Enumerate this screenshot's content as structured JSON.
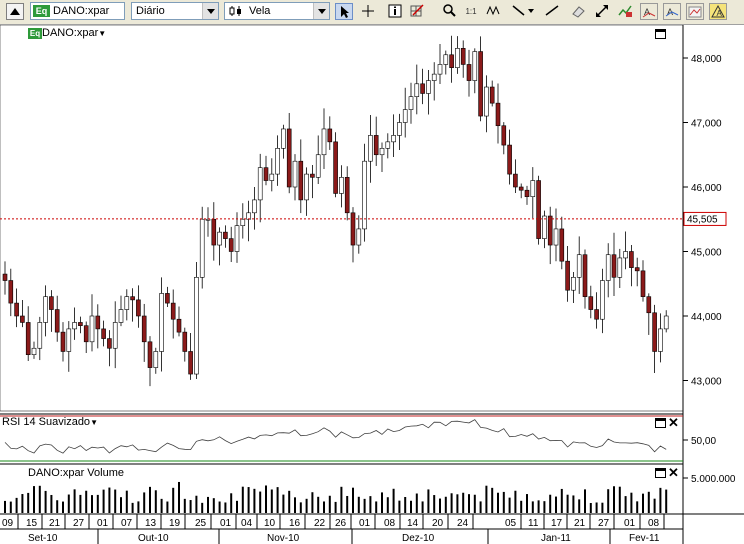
{
  "toolbar": {
    "symbol": "DANO:xpar",
    "eq_badge": "Eq",
    "period": "Diário",
    "chart_style": "Vela",
    "ratio_label": "1:1"
  },
  "price_pane": {
    "title": "DANO:xpar",
    "current_price": "45,505",
    "y_ticks": [
      "48,000",
      "47,000",
      "46,000",
      "45,000",
      "44,000",
      "43,000"
    ]
  },
  "rsi_pane": {
    "title": "RSI 14 Suavizado",
    "y_tick": "50,00"
  },
  "volume_pane": {
    "title": "DANO:xpar Volume",
    "y_tick": "5.000.000"
  },
  "dates": [
    "09",
    "15",
    "21",
    "27",
    "01",
    "07",
    "13",
    "19",
    "25",
    "01",
    "04",
    "10",
    "16",
    "22",
    "26",
    "01",
    "08",
    "14",
    "20",
    "24",
    "05",
    "11",
    "17",
    "21",
    "27",
    "01",
    "08"
  ],
  "months": [
    "Set-10",
    "Out-10",
    "Nov-10",
    "Dez-10",
    "Jan-11",
    "Fev-11"
  ],
  "colors": {
    "bear": "#8b1a1a",
    "bull": "#ffffff",
    "price_line": "#cc0000",
    "rsi_line": "#404040"
  },
  "chart_data": {
    "type": "candlestick",
    "y_range": [
      42.5,
      48.5
    ],
    "current": 45.505,
    "closes": [
      44.55,
      44.2,
      44.0,
      43.9,
      43.4,
      43.5,
      43.9,
      44.3,
      44.1,
      43.75,
      43.45,
      43.8,
      43.9,
      43.85,
      43.6,
      44.0,
      43.8,
      43.65,
      43.5,
      43.9,
      44.1,
      44.3,
      44.25,
      44.0,
      43.6,
      43.2,
      43.45,
      44.35,
      44.2,
      43.95,
      43.75,
      43.45,
      43.1,
      44.6,
      45.5,
      45.5,
      45.1,
      45.3,
      45.2,
      45.0,
      45.4,
      45.5,
      45.6,
      45.8,
      46.3,
      46.1,
      46.2,
      46.6,
      46.9,
      46.0,
      46.4,
      45.8,
      46.2,
      46.15,
      46.5,
      46.9,
      46.7,
      45.9,
      46.15,
      45.6,
      45.1,
      45.35,
      46.4,
      46.8,
      46.5,
      46.6,
      46.7,
      46.8,
      47.0,
      47.2,
      47.4,
      47.6,
      47.45,
      47.65,
      47.75,
      47.9,
      48.05,
      47.85,
      48.15,
      47.9,
      47.65,
      48.1,
      47.1,
      47.55,
      47.3,
      46.95,
      46.65,
      46.2,
      46.0,
      45.95,
      45.85,
      46.1,
      45.2,
      45.55,
      45.1,
      45.35,
      44.85,
      44.4,
      44.6,
      44.95,
      44.3,
      44.1,
      43.95,
      44.55,
      44.95,
      44.6,
      44.9,
      45.0,
      44.75,
      44.7,
      44.3,
      44.05,
      43.45,
      43.8,
      44.0
    ]
  }
}
